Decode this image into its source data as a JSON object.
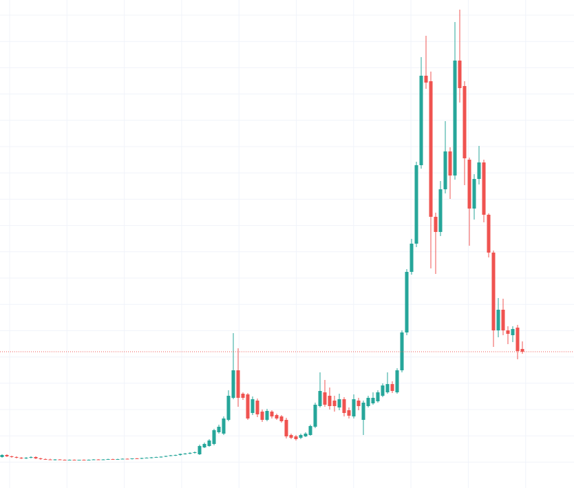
{
  "chart_data": {
    "type": "candlestick",
    "ylim": [
      0,
      709
    ],
    "grid": true,
    "price_line": true,
    "up_color": "#26a69a",
    "down_color": "#ef5350",
    "grid_color": "#f0f3fa",
    "open": [
      45,
      48,
      46,
      45,
      44,
      43,
      44,
      45,
      43,
      42,
      41.5,
      41,
      41.5,
      41,
      40.5,
      41,
      40.5,
      41,
      40.5,
      41,
      41.5,
      41,
      41.5,
      42,
      41.5,
      42,
      42.5,
      42,
      43,
      42.5,
      43.5,
      44,
      44.5,
      45,
      45.5,
      46.5,
      47.5,
      48,
      49.5,
      50,
      51,
      49,
      59,
      61,
      64,
      81,
      79,
      99,
      131,
      171,
      137,
      136,
      109,
      127,
      111,
      99,
      111,
      106,
      104,
      99,
      77,
      75,
      73,
      75,
      77,
      89,
      119,
      139,
      134,
      127,
      117,
      129,
      113,
      104,
      127,
      99,
      119,
      123,
      126,
      134,
      139,
      151,
      139,
      171,
      226,
      314,
      355,
      469,
      599,
      591,
      394,
      372,
      434,
      489,
      454,
      621,
      584,
      477,
      406,
      449,
      473,
      397,
      342,
      229,
      259,
      229,
      222,
      233,
      202
    ],
    "high": [
      49,
      49,
      47,
      46,
      45,
      45,
      46,
      46,
      44,
      43,
      42.5,
      42,
      42,
      41.5,
      41.5,
      41.5,
      41,
      41.5,
      41.5,
      42,
      42,
      42,
      42.5,
      42.5,
      42.5,
      43,
      43,
      43,
      43.5,
      44,
      44.5,
      45,
      45.5,
      46,
      47,
      48,
      48.5,
      50,
      51,
      52,
      53,
      63,
      66,
      71,
      86,
      92,
      104,
      142,
      225,
      203,
      139,
      138,
      133,
      130,
      114,
      115,
      113,
      108,
      106,
      102,
      79,
      77,
      79,
      81,
      92,
      124,
      168,
      157,
      146,
      134,
      137,
      132,
      117,
      136,
      131,
      127,
      134,
      139,
      142,
      152,
      168,
      155,
      174,
      229,
      318,
      362,
      474,
      626,
      657,
      605,
      400,
      446,
      533,
      495,
      677,
      695,
      591,
      480,
      456,
      497,
      477,
      399,
      345,
      276,
      275,
      235,
      235,
      237,
      213
    ],
    "low": [
      44,
      45,
      44,
      43,
      42,
      42,
      43,
      42,
      41,
      41,
      40.5,
      40,
      40.5,
      40,
      40,
      40,
      40,
      40,
      40,
      40.5,
      41,
      40.5,
      41,
      41,
      41,
      41.5,
      42,
      41.5,
      42,
      42,
      43,
      43,
      44,
      44,
      45,
      46,
      46.5,
      47,
      48.5,
      49,
      50,
      48,
      58,
      60,
      62,
      79,
      77,
      97,
      129,
      118,
      128,
      99,
      106,
      103,
      96,
      97,
      101,
      99,
      95,
      72,
      71,
      69,
      71,
      74,
      76,
      87,
      117,
      118,
      114,
      111,
      113,
      104,
      101,
      101,
      113,
      77,
      117,
      121,
      124,
      132,
      137,
      138,
      137,
      168,
      222,
      310,
      350,
      464,
      580,
      319,
      311,
      366,
      428,
      420,
      448,
      560,
      440,
      352,
      390,
      441,
      386,
      335,
      205,
      219,
      222,
      209,
      212,
      187,
      195
    ],
    "close": [
      48,
      46,
      45,
      44,
      43,
      44,
      45,
      43,
      42,
      41.5,
      41,
      41.5,
      41,
      40.5,
      41,
      40.5,
      41,
      40.5,
      41,
      41.5,
      41,
      41.5,
      42,
      41.5,
      42,
      42.5,
      42,
      43,
      42.5,
      43.5,
      44,
      44.5,
      45,
      45.5,
      46.5,
      47.5,
      48,
      49.5,
      50,
      51,
      52,
      61,
      64,
      69,
      84,
      89,
      101,
      134,
      171,
      131,
      131,
      101,
      129,
      107,
      99,
      112,
      104,
      101,
      97,
      75,
      73,
      71,
      77,
      79,
      90,
      121,
      141,
      121,
      119,
      119,
      129,
      109,
      105,
      129,
      119,
      124,
      131,
      131,
      139,
      149,
      151,
      141,
      171,
      226,
      314,
      355,
      469,
      599,
      589,
      394,
      372,
      434,
      489,
      454,
      621,
      581,
      479,
      406,
      449,
      473,
      397,
      342,
      229,
      259,
      229,
      224,
      231,
      199,
      198
    ]
  }
}
